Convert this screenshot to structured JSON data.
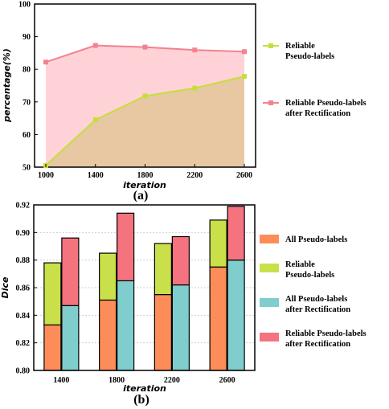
{
  "chart_data": [
    {
      "type": "area",
      "subtitle": "(a)",
      "xlabel": "iteration",
      "ylabel": "percentage(%)",
      "x": [
        1000,
        1400,
        1800,
        2200,
        2600
      ],
      "xticks": [
        "1000",
        "1400",
        "1800",
        "2200",
        "2600"
      ],
      "ylim": [
        50,
        100
      ],
      "yticks": [
        "50",
        "60",
        "70",
        "80",
        "90",
        "100"
      ],
      "grid": false,
      "legend_position": "right",
      "series": [
        {
          "name": "Reliable Pseudo-labels",
          "legend_lines": [
            "Reliable",
            "Pseudo-labels"
          ],
          "values": [
            50.5,
            64.5,
            71.8,
            74.2,
            77.8
          ],
          "color": "#c5de3d",
          "fill": "#e8c8a2"
        },
        {
          "name": "Reliable Pseudo-labels after Rectification",
          "legend_lines": [
            "Reliable Pseudo-labels",
            "after  Rectification"
          ],
          "values": [
            82.2,
            87.3,
            86.8,
            85.9,
            85.4
          ],
          "color": "#f2828f",
          "fill": "#ffd2d7"
        }
      ]
    },
    {
      "type": "bar",
      "subtitle": "(b)",
      "xlabel": "iteration",
      "ylabel": "Dice",
      "categories": [
        "1400",
        "1800",
        "2200",
        "2600"
      ],
      "ylim": [
        0.8,
        0.92
      ],
      "yticks": [
        "0.80",
        "0.82",
        "0.84",
        "0.86",
        "0.88",
        "0.90",
        "0.92"
      ],
      "grid": true,
      "legend_position": "right",
      "series": [
        {
          "name": "All Pseudo-labels",
          "legend_lines": [
            "All Pseudo-labels"
          ],
          "values": [
            0.833,
            0.851,
            0.855,
            0.875
          ],
          "color": "#fc8d59",
          "stack": "left"
        },
        {
          "name": "Reliable Pseudo-labels",
          "legend_lines": [
            "Reliable",
            "Pseudo-labels"
          ],
          "values": [
            0.878,
            0.885,
            0.892,
            0.909
          ],
          "color": "#c9e04a",
          "stack": "left"
        },
        {
          "name": "All Pseudo-labels after Rectification",
          "legend_lines": [
            "All Pseudo-labels",
            "after Rectification"
          ],
          "values": [
            0.847,
            0.865,
            0.862,
            0.88
          ],
          "color": "#7fcdcc",
          "stack": "right"
        },
        {
          "name": "Reliable Pseudo-labels after Rectification",
          "legend_lines": [
            "Reliable Pseudo-labels",
            "after  Rectification"
          ],
          "values": [
            0.896,
            0.914,
            0.897,
            0.919
          ],
          "color": "#f4737f",
          "stack": "right"
        }
      ]
    }
  ]
}
